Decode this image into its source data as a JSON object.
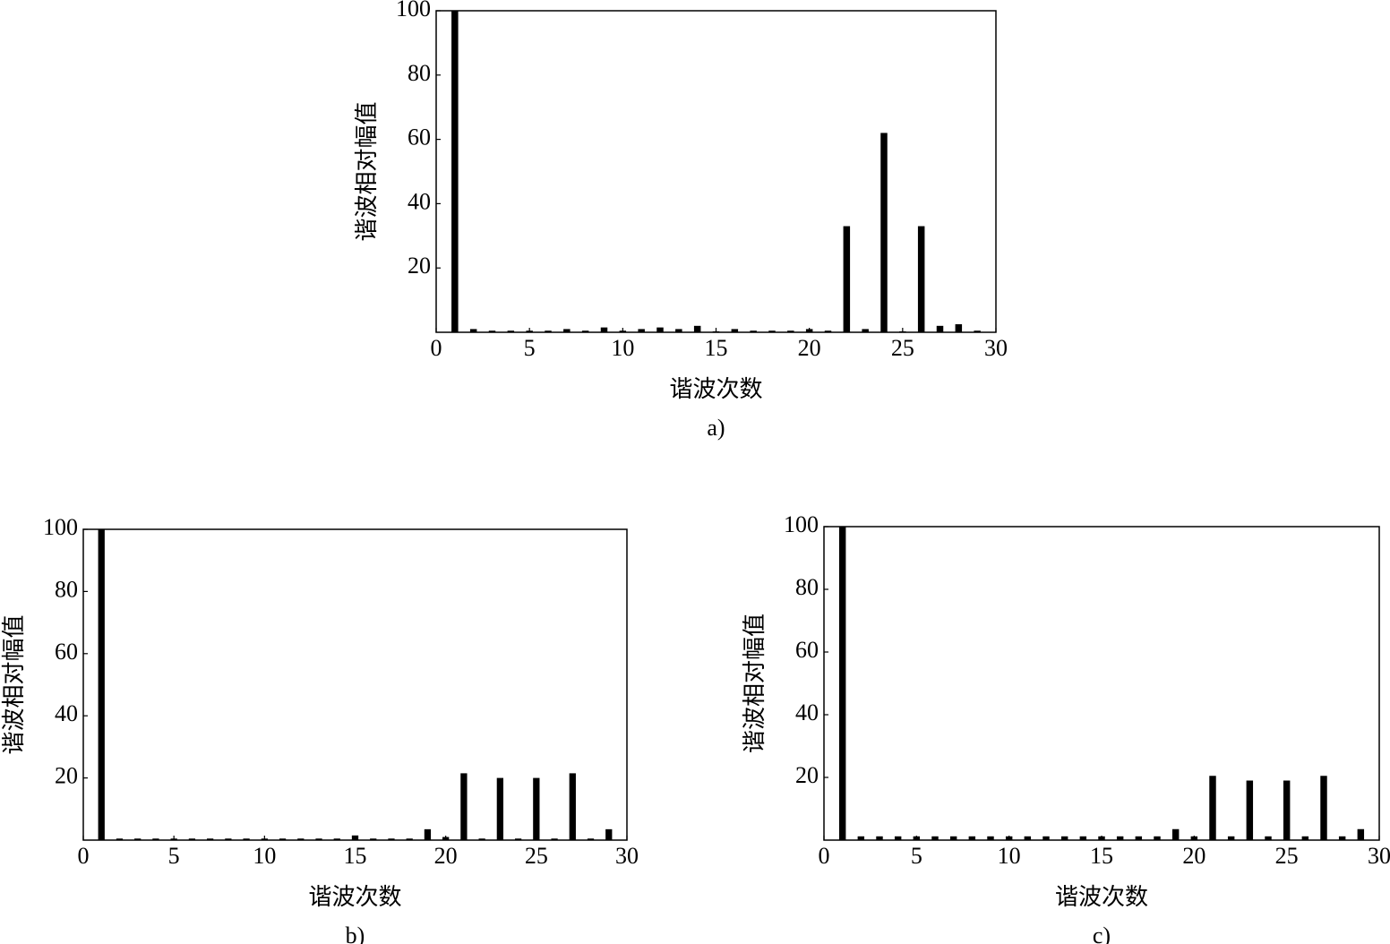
{
  "chart_data": [
    {
      "type": "bar",
      "caption": "a)",
      "xlabel": "谐波次数",
      "ylabel": "谐波相对幅值",
      "color": "#000000",
      "x": [
        1,
        2,
        3,
        4,
        5,
        6,
        7,
        8,
        9,
        10,
        11,
        12,
        13,
        14,
        15,
        16,
        17,
        18,
        19,
        20,
        21,
        22,
        23,
        24,
        25,
        26,
        27,
        28,
        29
      ],
      "values": [
        100,
        1,
        0.5,
        0.5,
        0.5,
        0.5,
        1,
        0.5,
        1.5,
        0.5,
        1,
        1.5,
        1,
        2,
        0.3,
        1,
        0.5,
        0.5,
        0.5,
        1,
        0.5,
        33,
        1,
        62,
        0.3,
        33,
        2,
        2.5,
        0.5
      ],
      "xlim": [
        0,
        30
      ],
      "xticks": [
        0,
        5,
        10,
        15,
        20,
        25,
        30
      ],
      "ylim": [
        0,
        100
      ],
      "yticks": [
        20,
        40,
        60,
        80,
        100
      ]
    },
    {
      "type": "bar",
      "caption": "b)",
      "xlabel": "谐波次数",
      "ylabel": "谐波相对幅值",
      "color": "#000000",
      "x": [
        1,
        2,
        3,
        4,
        5,
        6,
        7,
        8,
        9,
        10,
        11,
        12,
        13,
        14,
        15,
        16,
        17,
        18,
        19,
        20,
        21,
        22,
        23,
        24,
        25,
        26,
        27,
        28,
        29
      ],
      "values": [
        100,
        0.5,
        0.5,
        0.5,
        0.5,
        0.5,
        0.5,
        0.5,
        0.5,
        0.5,
        0.5,
        0.5,
        0.5,
        0.5,
        1.5,
        0.5,
        0.5,
        0.5,
        3.5,
        1,
        21.5,
        0.5,
        20,
        0.5,
        20,
        0.5,
        21.5,
        0.5,
        3.5
      ],
      "xlim": [
        0,
        30
      ],
      "xticks": [
        0,
        5,
        10,
        15,
        20,
        25,
        30
      ],
      "ylim": [
        0,
        100
      ],
      "yticks": [
        20,
        40,
        60,
        80,
        100
      ]
    },
    {
      "type": "bar",
      "caption": "c)",
      "xlabel": "谐波次数",
      "ylabel": "谐波相对幅值",
      "color": "#000000",
      "x": [
        1,
        2,
        3,
        4,
        5,
        6,
        7,
        8,
        9,
        10,
        11,
        12,
        13,
        14,
        15,
        16,
        17,
        18,
        19,
        20,
        21,
        22,
        23,
        24,
        25,
        26,
        27,
        28,
        29
      ],
      "values": [
        100,
        1.2,
        1.2,
        1.2,
        1.2,
        1.2,
        1.2,
        1.2,
        1.2,
        1.2,
        1.2,
        1.2,
        1.2,
        1.2,
        1.2,
        1.2,
        1.2,
        1.2,
        3.5,
        1.2,
        20.5,
        1.2,
        19,
        1.2,
        19,
        1.2,
        20.5,
        1.2,
        3.5
      ],
      "xlim": [
        0,
        30
      ],
      "xticks": [
        0,
        5,
        10,
        15,
        20,
        25,
        30
      ],
      "ylim": [
        0,
        100
      ],
      "yticks": [
        20,
        40,
        60,
        80,
        100
      ]
    }
  ]
}
